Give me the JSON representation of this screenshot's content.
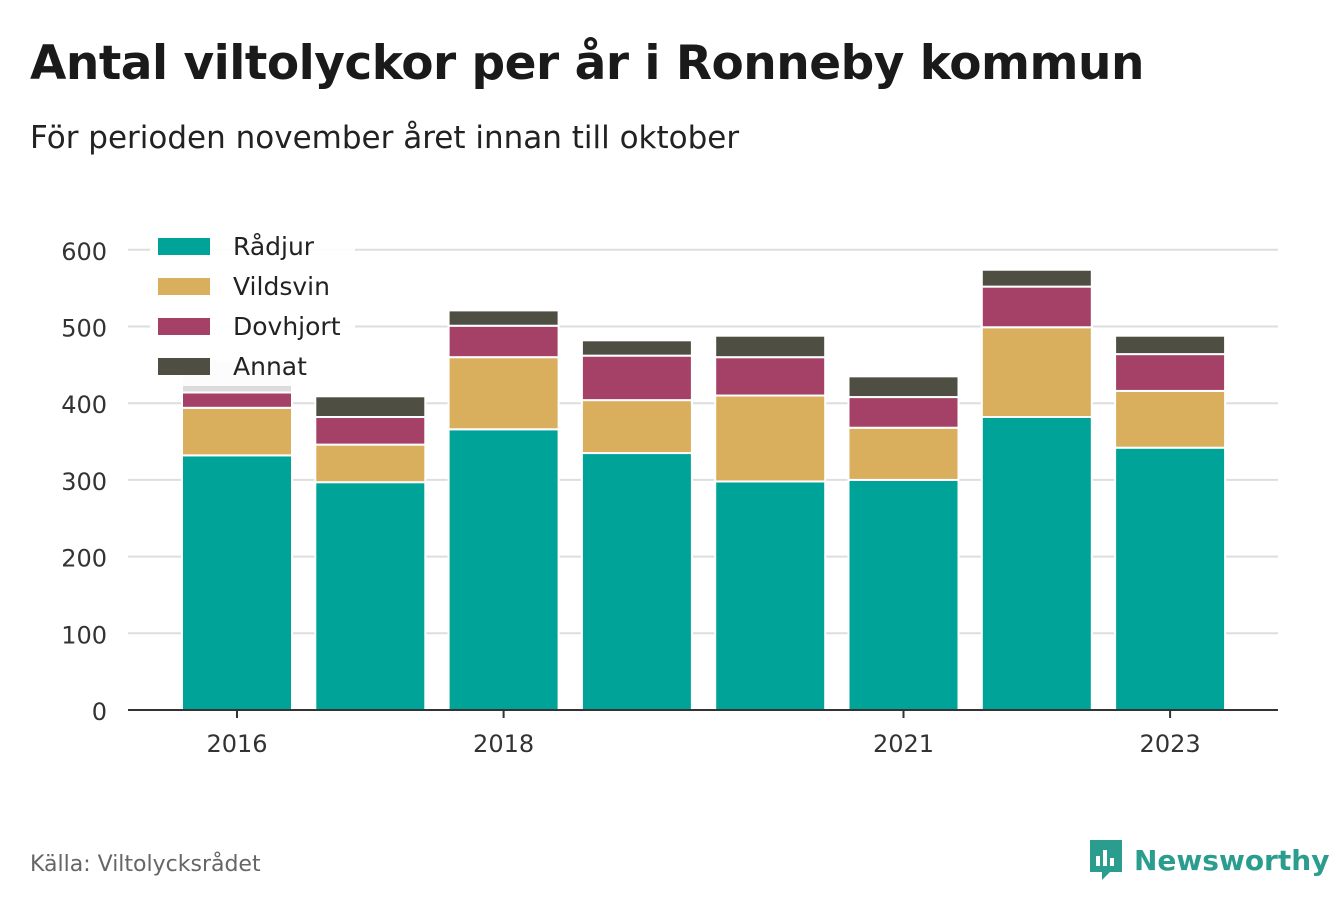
{
  "header": {
    "title": "Antal viltolyckor per år i Ronneby kommun",
    "subtitle": "För perioden november året innan till oktober"
  },
  "footer": {
    "source": "Källa: Viltolycksrådet",
    "brand": "Newsworthy"
  },
  "colors": {
    "radjur": "#00a398",
    "vildsvin": "#d9ae5c",
    "dovhjort": "#a54166",
    "annat": "#4e4e42",
    "highlight": "#dcdcdc",
    "brand": "#2a9d8f"
  },
  "chart_data": {
    "type": "bar",
    "stacked": true,
    "categories": [
      "2016",
      "2017",
      "2018",
      "2019",
      "2020",
      "2021",
      "2022",
      "2023"
    ],
    "x_tick_labels": [
      "2016",
      "2018",
      "2021",
      "2023"
    ],
    "series": [
      {
        "name": "Rådjur",
        "color": "#00a398",
        "values": [
          332,
          297,
          366,
          335,
          298,
          300,
          382,
          342
        ]
      },
      {
        "name": "Vildsvin",
        "color": "#d9ae5c",
        "values": [
          62,
          49,
          94,
          69,
          112,
          68,
          117,
          74
        ]
      },
      {
        "name": "Dovhjort",
        "color": "#a54166",
        "values": [
          20,
          36,
          41,
          58,
          50,
          40,
          53,
          48
        ]
      },
      {
        "name": "Annat",
        "color": "#4e4e42",
        "values": [
          43,
          27,
          20,
          20,
          28,
          27,
          22,
          24
        ]
      }
    ],
    "highlighted_segment": {
      "category": "2016",
      "series": "Annat"
    },
    "ylim": [
      0,
      600
    ],
    "yticks": [
      0,
      100,
      200,
      300,
      400,
      500,
      600
    ],
    "grid": true,
    "legend": "top-left"
  }
}
